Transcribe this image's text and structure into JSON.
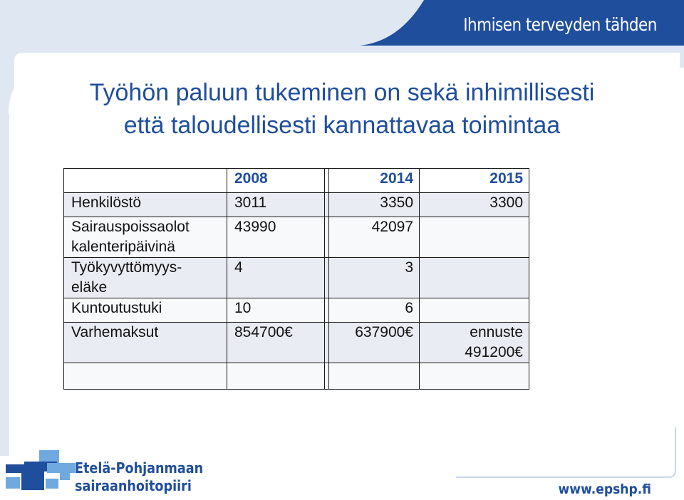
{
  "header": {
    "tagline": "Ihmisen terveyden tähden"
  },
  "title": {
    "line1": "Työhön paluun tukeminen on sekä inhimillisesti",
    "line2": "että taloudellisesti kannattavaa toimintaa"
  },
  "table": {
    "headers": [
      "",
      "2008",
      "",
      "2014",
      "2015"
    ],
    "rows": [
      {
        "label": "Henkilöstö",
        "v2008": "3011",
        "v2014": "3350",
        "v2015": "3300"
      },
      {
        "label_lines": [
          "Sairauspoissaolot",
          "kalenteripäivinä"
        ],
        "v2008": "43990",
        "v2014": "42097",
        "v2015": ""
      },
      {
        "label_lines": [
          "Työkyvyttömyys-",
          "eläke"
        ],
        "v2008": "4",
        "v2014": "3",
        "v2015": ""
      },
      {
        "label": "Kuntoutustuki",
        "v2008": "10",
        "v2014": "6",
        "v2015": ""
      },
      {
        "label": "Varhemaksut",
        "v2008": "854700€",
        "v2014": "637900€",
        "v2015_lines": [
          "ennuste",
          "491200€"
        ]
      }
    ]
  },
  "footer": {
    "org_line1": "Etelä-Pohjanmaan",
    "org_line2": "sairaanhoitopiiri",
    "url": "www.epshp.fi"
  },
  "colors": {
    "brand_blue": "#1f4e9c",
    "frame_light": "#dbe4f2",
    "logo_light": "#6fa9e0"
  }
}
